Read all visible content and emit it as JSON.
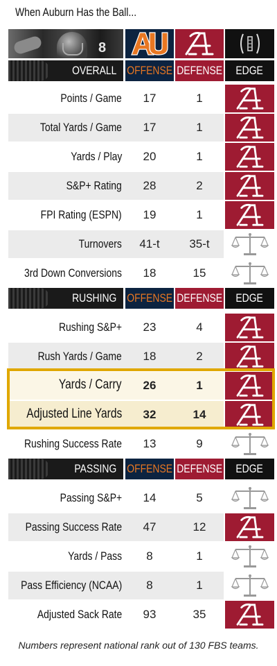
{
  "title": "When Auburn Has the Ball...",
  "logos": {
    "player_number": "8",
    "auburn_icon": "auburn-au-logo",
    "alabama_icon": "alabama-script-a-logo",
    "playoff_icon": "cfp-trophy-logo"
  },
  "colors": {
    "auburn_navy": "#0c2340",
    "auburn_orange": "#e87722",
    "alabama_crimson": "#9e1b32",
    "highlight_gold": "#e0a800"
  },
  "sections": [
    {
      "label": "OVERALL",
      "offense_header": "OFFENSE",
      "defense_header": "DEFENSE",
      "edge_header": "EDGE",
      "rows": [
        {
          "label": "Points / Game",
          "offense": "17",
          "defense": "1",
          "edge": "alabama"
        },
        {
          "label": "Total Yards / Game",
          "offense": "17",
          "defense": "1",
          "edge": "alabama"
        },
        {
          "label": "Yards / Play",
          "offense": "20",
          "defense": "1",
          "edge": "alabama"
        },
        {
          "label": "S&P+ Rating",
          "offense": "28",
          "defense": "2",
          "edge": "alabama"
        },
        {
          "label": "FPI Rating (ESPN)",
          "offense": "19",
          "defense": "1",
          "edge": "alabama"
        },
        {
          "label": "Turnovers",
          "offense": "41-t",
          "defense": "35-t",
          "edge": "even"
        },
        {
          "label": "3rd Down Conversions",
          "offense": "18",
          "defense": "15",
          "edge": "even"
        }
      ]
    },
    {
      "label": "RUSHING",
      "offense_header": "OFFENSE",
      "defense_header": "DEFENSE",
      "edge_header": "EDGE",
      "rows": [
        {
          "label": "Rushing S&P+",
          "offense": "23",
          "defense": "4",
          "edge": "alabama"
        },
        {
          "label": "Rush Yards / Game",
          "offense": "18",
          "defense": "2",
          "edge": "alabama"
        },
        {
          "label": "Yards / Carry",
          "offense": "26",
          "defense": "1",
          "edge": "alabama",
          "highlight": true
        },
        {
          "label": "Adjusted Line Yards",
          "offense": "32",
          "defense": "14",
          "edge": "alabama",
          "highlight": true
        },
        {
          "label": "Rushing Success Rate",
          "offense": "13",
          "defense": "9",
          "edge": "even"
        }
      ]
    },
    {
      "label": "PASSING",
      "offense_header": "OFFENSE",
      "defense_header": "DEFENSE",
      "edge_header": "EDGE",
      "rows": [
        {
          "label": "Passing S&P+",
          "offense": "14",
          "defense": "5",
          "edge": "even"
        },
        {
          "label": "Passing Success Rate",
          "offense": "47",
          "defense": "12",
          "edge": "alabama"
        },
        {
          "label": "Yards / Pass",
          "offense": "8",
          "defense": "1",
          "edge": "even"
        },
        {
          "label": "Pass Efficiency (NCAA)",
          "offense": "8",
          "defense": "1",
          "edge": "even"
        },
        {
          "label": "Adjusted Sack Rate",
          "offense": "93",
          "defense": "35",
          "edge": "alabama"
        }
      ]
    }
  ],
  "footnote": "Numbers represent national rank out of 130 FBS teams."
}
